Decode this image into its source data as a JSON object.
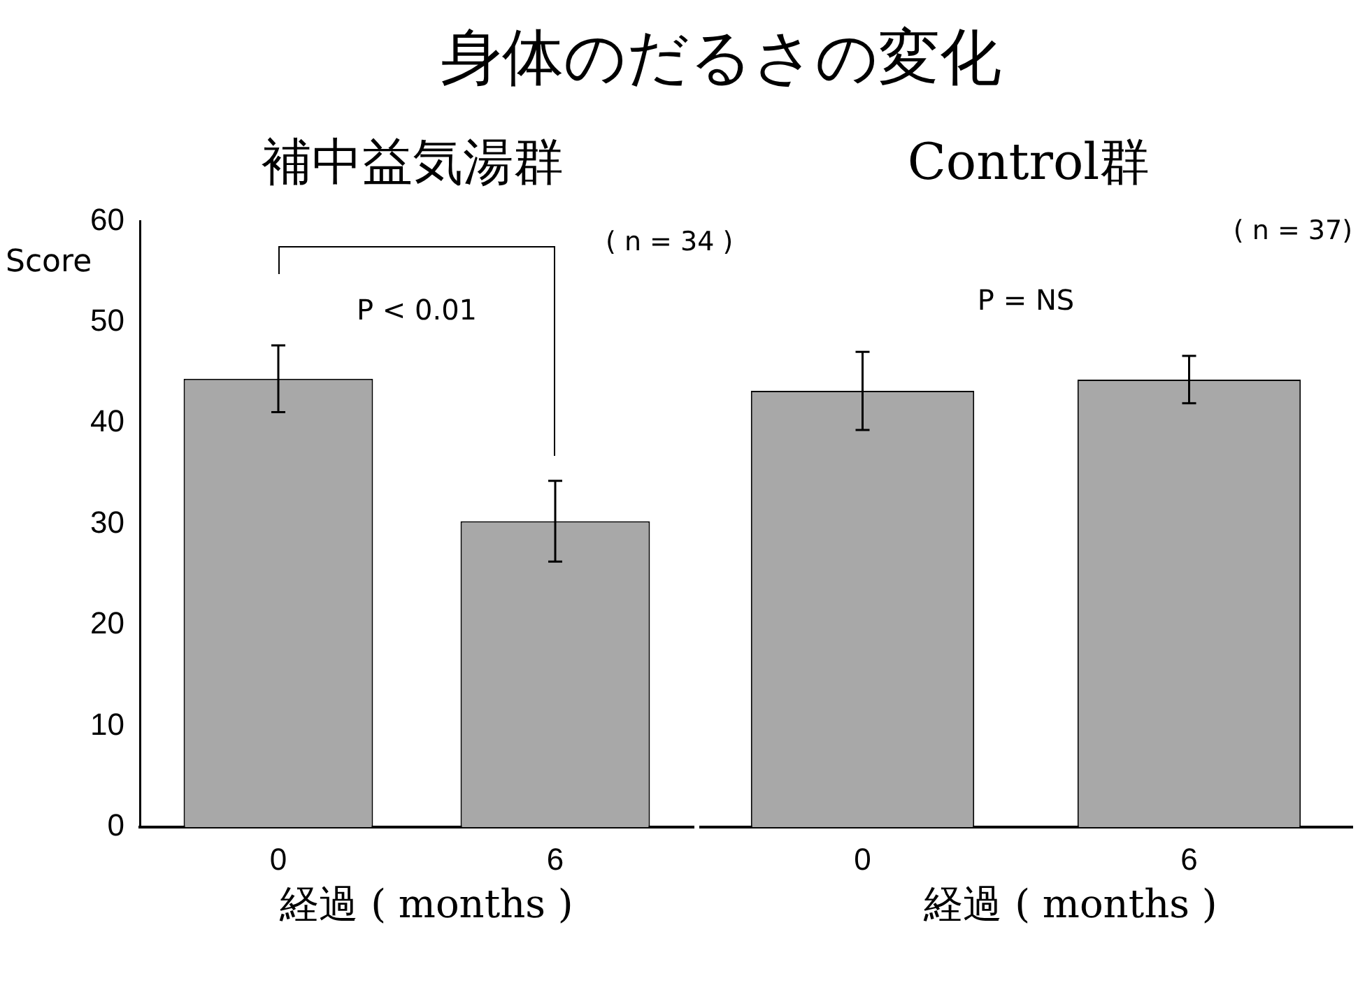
{
  "chart_data": [
    {
      "type": "bar",
      "title": "身体のだるさの変化",
      "subtitle": "補中益気湯群",
      "ylabel": "Score",
      "xlabel": "経過 ( months )",
      "categories": [
        "0",
        "6"
      ],
      "values": [
        44.4,
        30.3
      ],
      "errors": [
        3.3,
        4.0
      ],
      "color": "#a8a8a8",
      "ylim": [
        0,
        60
      ],
      "yticks": [
        0,
        10,
        20,
        30,
        40,
        50,
        60
      ],
      "annotations": [
        "( n = 34 )",
        "P < 0.01"
      ]
    },
    {
      "type": "bar",
      "subtitle": "Control群",
      "xlabel": "経過 ( months )",
      "categories": [
        "0",
        "6"
      ],
      "values": [
        42.4,
        43.5
      ],
      "errors": [
        3.8,
        2.3
      ],
      "color": "#a8a8a8",
      "ylim": [
        0,
        60
      ],
      "yticks": [
        0,
        10,
        20,
        30,
        40,
        50,
        60
      ],
      "tick_labels": "x",
      "annotations": [
        "( n = 37)",
        "P = NS"
      ]
    }
  ]
}
